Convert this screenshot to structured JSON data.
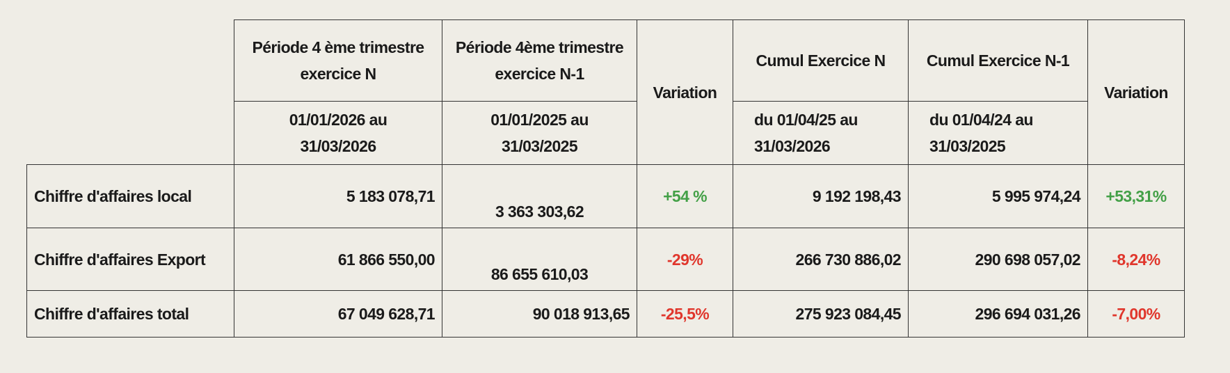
{
  "table": {
    "header": {
      "row1": [
        "Période 4 ème trimestre\nexercice N",
        "Période 4ème trimestre\nexercice N-1",
        "Variation",
        "Cumul Exercice N",
        "Cumul Exercice N-1",
        "Variation"
      ],
      "row2": [
        "01/01/2026 au\n31/03/2026",
        "01/01/2025 au\n31/03/2025",
        "du 01/04/25 au\n31/03/2026",
        "du 01/04/24 au\n31/03/2025"
      ]
    },
    "rows": [
      [
        "Chiffre d'affaires local",
        "5 183 078,71",
        "3 363 303,62",
        "+54 %",
        "9 192 198,43",
        "5 995 974,24",
        "+53,31%"
      ],
      [
        "Chiffre d'affaires Export",
        "61 866 550,00",
        "86 655 610,03",
        "-29%",
        "266 730 886,02",
        "290 698 057,02",
        "-8,24%"
      ],
      [
        "Chiffre d'affaires total",
        "67 049 628,71",
        "90 018 913,65",
        "-25,5%",
        "275 923 084,45",
        "296 694 031,26",
        "-7,00%"
      ]
    ]
  }
}
